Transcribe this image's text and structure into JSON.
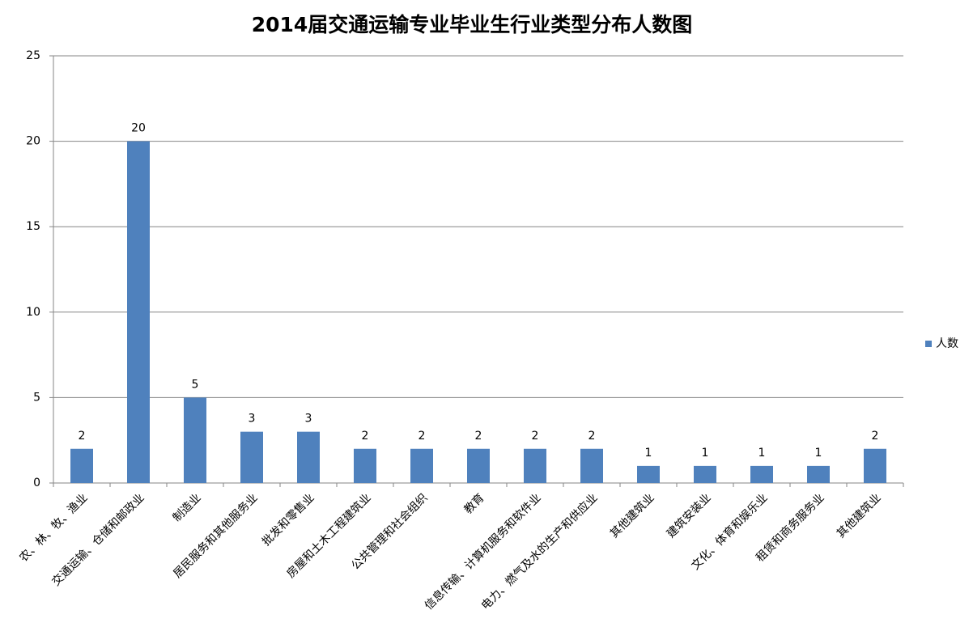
{
  "chart_data": {
    "type": "bar",
    "title": "2014届交通运输专业毕业生行业类型分布人数图",
    "categories": [
      "农、林、牧、渔业",
      "交通运输、仓储和邮政业",
      "制造业",
      "居民服务和其他服务业",
      "批发和零售业",
      "房屋和土木工程建筑业",
      "公共管理和社会组织",
      "教育",
      "信息传输、计算机服务和软件业",
      "电力、燃气及水的生产和供应业",
      "其他建筑业",
      "建筑安装业",
      "文化、体育和娱乐业",
      "租赁和商务服务业",
      "其他建筑业"
    ],
    "series": [
      {
        "name": "人数",
        "color": "#4f81bd",
        "values": [
          2,
          20,
          5,
          3,
          3,
          2,
          2,
          2,
          2,
          2,
          1,
          1,
          1,
          1,
          2
        ]
      }
    ],
    "ylim": [
      0,
      25
    ],
    "yticks": [
      0,
      5,
      10,
      15,
      20,
      25
    ],
    "grid": true,
    "legend": "right",
    "data_labels": true
  }
}
